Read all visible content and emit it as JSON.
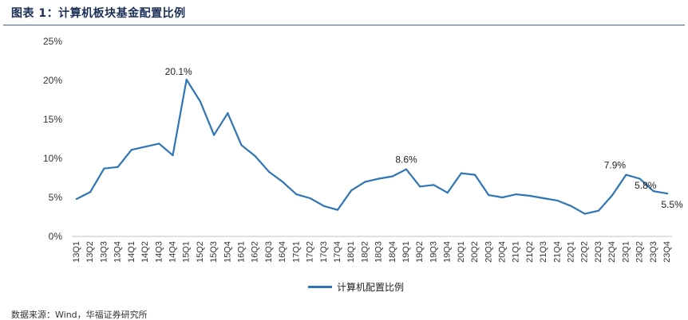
{
  "header": {
    "title": "图表 1：计算机板块基金配置比例"
  },
  "footer": {
    "source": "数据来源：Wind，华福证券研究所"
  },
  "colors": {
    "series": "#2e75b6",
    "rule": "#3f5f96",
    "title": "#1a2e55"
  },
  "chart_data": {
    "type": "line",
    "title": "",
    "xlabel": "",
    "ylabel": "",
    "ylim": [
      0,
      25
    ],
    "y_ticks": [
      "0%",
      "5%",
      "10%",
      "15%",
      "20%",
      "25%"
    ],
    "grid": false,
    "legend": "bottom-center",
    "categories": [
      "13Q1",
      "13Q2",
      "13Q3",
      "13Q4",
      "14Q1",
      "14Q2",
      "14Q3",
      "14Q4",
      "15Q1",
      "15Q2",
      "15Q3",
      "15Q4",
      "16Q1",
      "16Q2",
      "16Q3",
      "16Q4",
      "17Q1",
      "17Q2",
      "17Q3",
      "17Q4",
      "18Q1",
      "18Q2",
      "18Q3",
      "18Q4",
      "19Q1",
      "19Q2",
      "19Q3",
      "19Q4",
      "20Q1",
      "20Q2",
      "20Q3",
      "20Q4",
      "21Q1",
      "21Q2",
      "21Q3",
      "21Q4",
      "22Q1",
      "22Q2",
      "22Q3",
      "22Q4",
      "23Q1",
      "23Q2",
      "23Q3",
      "23Q4"
    ],
    "series": [
      {
        "name": "计算机配置比例",
        "values": [
          4.8,
          5.7,
          8.7,
          8.9,
          11.1,
          11.5,
          11.9,
          10.4,
          20.1,
          17.3,
          13.0,
          15.8,
          11.7,
          10.3,
          8.3,
          7.0,
          5.4,
          4.9,
          3.9,
          3.4,
          5.9,
          7.0,
          7.4,
          7.7,
          8.6,
          6.4,
          6.6,
          5.6,
          8.1,
          7.9,
          5.3,
          5.0,
          5.4,
          5.2,
          4.9,
          4.6,
          3.9,
          2.9,
          3.3,
          5.3,
          7.9,
          7.4,
          5.8,
          5.5
        ]
      }
    ],
    "annotations": [
      {
        "index": 8,
        "label": "20.1%"
      },
      {
        "index": 24,
        "label": "8.6%"
      },
      {
        "index": 40,
        "label": "7.9%"
      },
      {
        "index": 42,
        "label": "5.8%"
      },
      {
        "index": 43,
        "label": "5.5%"
      }
    ]
  }
}
